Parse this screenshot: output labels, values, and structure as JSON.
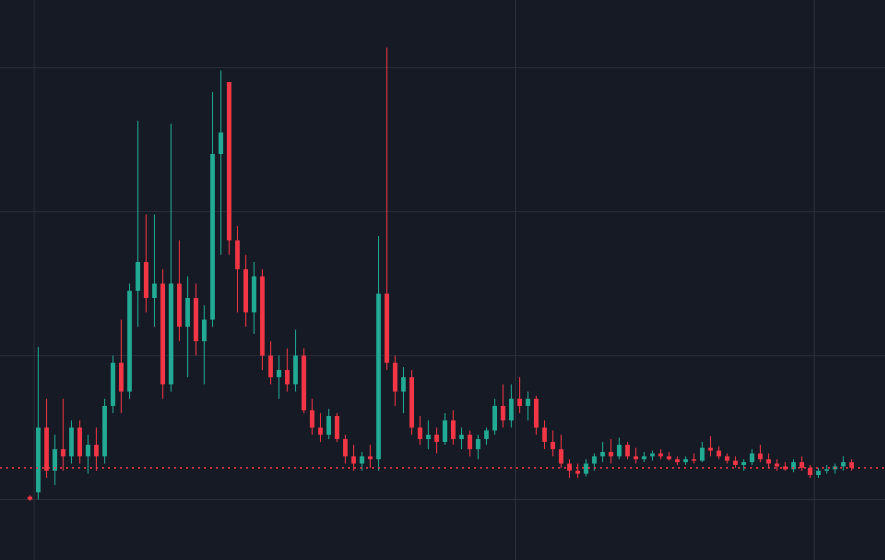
{
  "chart_data": {
    "type": "candlestick",
    "x": [
      0,
      1,
      2,
      3,
      4,
      5,
      6,
      7,
      8,
      9,
      10,
      11,
      12,
      13,
      14,
      15,
      16,
      17,
      18,
      19,
      20,
      21,
      22,
      23,
      24,
      25,
      26,
      27,
      28,
      29,
      30,
      31,
      32,
      33,
      34,
      35,
      36,
      37,
      38,
      39,
      40,
      41,
      42,
      43,
      44,
      45,
      46,
      47,
      48,
      49,
      50,
      51,
      52,
      53,
      54,
      55,
      56,
      57,
      58,
      59,
      60,
      61,
      62,
      63,
      64,
      65,
      66,
      67,
      68,
      69,
      70,
      71,
      72,
      73,
      74,
      75,
      76,
      77,
      78,
      79,
      80,
      81,
      82,
      83,
      84,
      85,
      86,
      87,
      88,
      89,
      90,
      91,
      92,
      93,
      94,
      95,
      96,
      97,
      98,
      99
    ],
    "open": [
      0.02,
      0.05,
      0.5,
      0.2,
      0.35,
      0.3,
      0.5,
      0.3,
      0.38,
      0.3,
      0.65,
      0.95,
      0.75,
      1.45,
      1.65,
      1.4,
      1.5,
      0.8,
      1.5,
      1.2,
      1.4,
      1.1,
      1.25,
      2.4,
      2.9,
      1.8,
      1.6,
      1.3,
      1.55,
      1.0,
      0.85,
      0.9,
      0.8,
      1.0,
      0.62,
      0.5,
      0.45,
      0.58,
      0.42,
      0.3,
      0.25,
      0.3,
      0.28,
      1.43,
      0.95,
      0.75,
      0.85,
      0.5,
      0.42,
      0.45,
      0.4,
      0.55,
      0.42,
      0.45,
      0.35,
      0.42,
      0.48,
      0.65,
      0.55,
      0.7,
      0.65,
      0.7,
      0.5,
      0.4,
      0.35,
      0.25,
      0.2,
      0.18,
      0.25,
      0.3,
      0.33,
      0.3,
      0.38,
      0.3,
      0.28,
      0.3,
      0.32,
      0.3,
      0.28,
      0.26,
      0.28,
      0.27,
      0.36,
      0.34,
      0.3,
      0.27,
      0.24,
      0.26,
      0.32,
      0.28,
      0.25,
      0.23,
      0.21,
      0.26,
      0.22,
      0.17,
      0.2,
      0.21,
      0.23,
      0.26
    ],
    "high": [
      0.03,
      1.06,
      0.7,
      0.45,
      0.7,
      0.55,
      0.55,
      0.45,
      0.5,
      0.7,
      1.0,
      1.25,
      1.5,
      2.63,
      1.98,
      1.98,
      1.6,
      2.61,
      1.8,
      1.55,
      1.5,
      1.35,
      2.83,
      2.98,
      2.9,
      1.9,
      1.7,
      1.65,
      1.6,
      1.1,
      1.0,
      1.05,
      1.18,
      1.05,
      0.7,
      0.6,
      0.63,
      0.6,
      0.45,
      0.38,
      0.33,
      0.38,
      1.83,
      3.14,
      1.0,
      0.92,
      0.9,
      0.58,
      0.55,
      0.5,
      0.6,
      0.62,
      0.5,
      0.48,
      0.45,
      0.5,
      0.7,
      0.8,
      0.8,
      0.85,
      0.75,
      0.72,
      0.55,
      0.48,
      0.45,
      0.28,
      0.25,
      0.28,
      0.32,
      0.4,
      0.42,
      0.43,
      0.4,
      0.36,
      0.33,
      0.34,
      0.35,
      0.33,
      0.3,
      0.3,
      0.32,
      0.4,
      0.44,
      0.37,
      0.32,
      0.3,
      0.28,
      0.35,
      0.38,
      0.32,
      0.28,
      0.26,
      0.28,
      0.3,
      0.24,
      0.22,
      0.24,
      0.25,
      0.3,
      0.28
    ],
    "low": [
      -0.01,
      0.0,
      0.15,
      0.1,
      0.2,
      0.25,
      0.25,
      0.18,
      0.2,
      0.25,
      0.6,
      0.6,
      0.7,
      1.2,
      1.3,
      1.2,
      0.7,
      0.75,
      1.1,
      0.85,
      1.0,
      0.8,
      1.2,
      1.7,
      1.7,
      1.3,
      1.2,
      1.15,
      0.9,
      0.8,
      0.7,
      0.75,
      0.75,
      0.6,
      0.45,
      0.4,
      0.42,
      0.4,
      0.25,
      0.2,
      0.2,
      0.22,
      0.2,
      0.9,
      0.65,
      0.6,
      0.45,
      0.38,
      0.35,
      0.32,
      0.38,
      0.38,
      0.35,
      0.3,
      0.28,
      0.38,
      0.45,
      0.5,
      0.5,
      0.6,
      0.55,
      0.45,
      0.35,
      0.3,
      0.22,
      0.15,
      0.15,
      0.16,
      0.2,
      0.26,
      0.25,
      0.28,
      0.28,
      0.25,
      0.26,
      0.27,
      0.28,
      0.27,
      0.24,
      0.24,
      0.25,
      0.26,
      0.3,
      0.28,
      0.25,
      0.22,
      0.2,
      0.24,
      0.26,
      0.22,
      0.2,
      0.2,
      0.19,
      0.2,
      0.15,
      0.15,
      0.18,
      0.18,
      0.2,
      0.2
    ],
    "close": [
      0.0,
      0.5,
      0.2,
      0.35,
      0.3,
      0.5,
      0.3,
      0.38,
      0.3,
      0.65,
      0.95,
      0.75,
      1.45,
      1.65,
      1.4,
      1.5,
      0.8,
      1.5,
      1.2,
      1.4,
      1.1,
      1.25,
      2.4,
      2.55,
      1.8,
      1.6,
      1.3,
      1.55,
      1.0,
      0.85,
      0.9,
      0.8,
      1.0,
      0.62,
      0.5,
      0.45,
      0.58,
      0.42,
      0.3,
      0.25,
      0.3,
      0.28,
      1.43,
      0.95,
      0.75,
      0.85,
      0.5,
      0.42,
      0.45,
      0.4,
      0.55,
      0.42,
      0.45,
      0.35,
      0.42,
      0.48,
      0.65,
      0.55,
      0.7,
      0.65,
      0.7,
      0.5,
      0.4,
      0.35,
      0.25,
      0.2,
      0.18,
      0.25,
      0.3,
      0.33,
      0.3,
      0.38,
      0.3,
      0.28,
      0.3,
      0.32,
      0.3,
      0.28,
      0.26,
      0.28,
      0.27,
      0.36,
      0.34,
      0.3,
      0.27,
      0.24,
      0.26,
      0.32,
      0.28,
      0.25,
      0.23,
      0.21,
      0.26,
      0.22,
      0.17,
      0.2,
      0.21,
      0.23,
      0.26,
      0.22
    ],
    "up_color": "#22ab94",
    "down_color": "#f23645",
    "price_line": 0.22,
    "xlim": [
      -3.61,
      103.02
    ],
    "xticks": [
      0.5,
      58.5,
      94.5
    ],
    "ylim": [
      -0.42,
      3.47
    ],
    "yticks": [
      0,
      1,
      2,
      3
    ],
    "grid": true
  }
}
